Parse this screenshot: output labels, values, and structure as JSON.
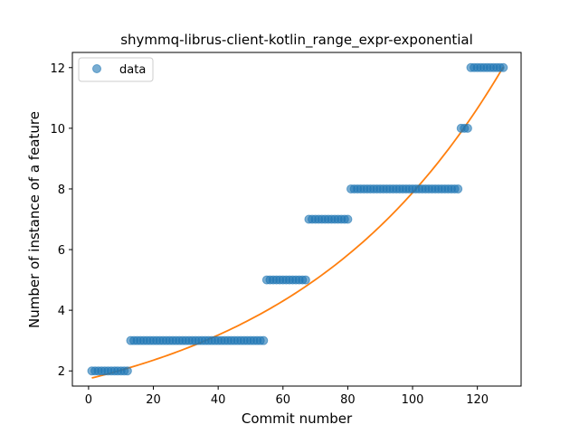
{
  "chart_data": {
    "type": "scatter",
    "title": "shymmq-librus-client-kotlin_range_expr-exponential",
    "xlabel": "Commit number",
    "ylabel": "Number of instance of a feature",
    "xlim": [
      -5,
      133.5
    ],
    "ylim": [
      1.5,
      12.5
    ],
    "xticks": [
      0,
      20,
      40,
      60,
      80,
      100,
      120
    ],
    "yticks": [
      2,
      4,
      6,
      8,
      10,
      12
    ],
    "grid": false,
    "legend_placement": "top-left",
    "series": [
      {
        "name": "data",
        "kind": "scatter",
        "color": "#1f77b4",
        "x": [
          1,
          2,
          3,
          4,
          5,
          6,
          7,
          8,
          9,
          10,
          11,
          12,
          13,
          14,
          15,
          16,
          17,
          18,
          19,
          20,
          21,
          22,
          23,
          24,
          25,
          26,
          27,
          28,
          29,
          30,
          31,
          32,
          33,
          34,
          35,
          36,
          37,
          38,
          39,
          40,
          41,
          42,
          43,
          44,
          45,
          46,
          47,
          48,
          49,
          50,
          51,
          52,
          53,
          54,
          55,
          56,
          57,
          58,
          59,
          60,
          61,
          62,
          63,
          64,
          65,
          66,
          67,
          68,
          69,
          70,
          71,
          72,
          73,
          74,
          75,
          76,
          77,
          78,
          79,
          80,
          81,
          82,
          83,
          84,
          85,
          86,
          87,
          88,
          89,
          90,
          91,
          92,
          93,
          94,
          95,
          96,
          97,
          98,
          99,
          100,
          101,
          102,
          103,
          104,
          105,
          106,
          107,
          108,
          109,
          110,
          111,
          112,
          113,
          114,
          115,
          116,
          117,
          118,
          119,
          120,
          121,
          122,
          123,
          124,
          125,
          126,
          127,
          128
        ],
        "y": [
          2,
          2,
          2,
          2,
          2,
          2,
          2,
          2,
          2,
          2,
          2,
          2,
          3,
          3,
          3,
          3,
          3,
          3,
          3,
          3,
          3,
          3,
          3,
          3,
          3,
          3,
          3,
          3,
          3,
          3,
          3,
          3,
          3,
          3,
          3,
          3,
          3,
          3,
          3,
          3,
          3,
          3,
          3,
          3,
          3,
          3,
          3,
          3,
          3,
          3,
          3,
          3,
          3,
          3,
          5,
          5,
          5,
          5,
          5,
          5,
          5,
          5,
          5,
          5,
          5,
          5,
          5,
          7,
          7,
          7,
          7,
          7,
          7,
          7,
          7,
          7,
          7,
          7,
          7,
          7,
          8,
          8,
          8,
          8,
          8,
          8,
          8,
          8,
          8,
          8,
          8,
          8,
          8,
          8,
          8,
          8,
          8,
          8,
          8,
          8,
          8,
          8,
          8,
          8,
          8,
          8,
          8,
          8,
          8,
          8,
          8,
          8,
          8,
          8,
          10,
          10,
          10,
          12,
          12,
          12,
          12,
          12,
          12,
          12,
          12,
          12,
          12,
          12
        ]
      },
      {
        "name": "",
        "kind": "line",
        "color": "#ff7f0e",
        "fit": {
          "a": 1.74,
          "b": 0.0151,
          "x_start": 1,
          "x_end": 128
        }
      }
    ],
    "legend": [
      {
        "label": "data",
        "marker": "circle",
        "color": "#1f77b4"
      }
    ]
  }
}
